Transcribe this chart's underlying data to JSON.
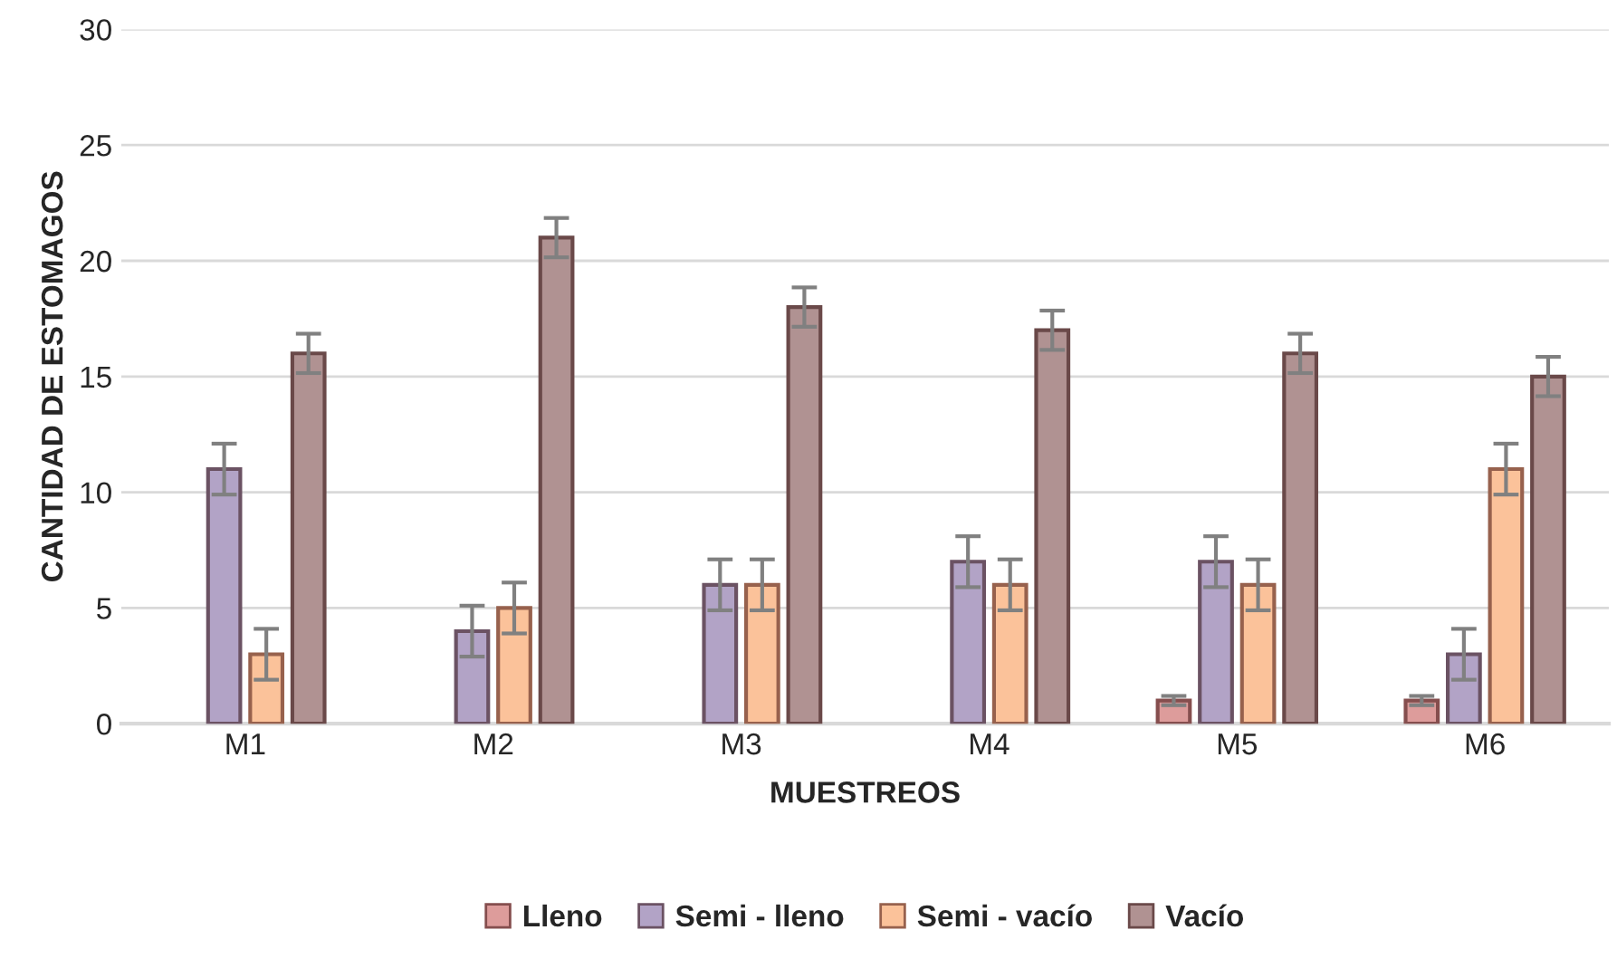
{
  "chart_data": {
    "type": "bar",
    "xlabel": "MUESTREOS",
    "ylabel": "CANTIDAD DE ESTOMAGOS",
    "categories": [
      "M1",
      "M2",
      "M3",
      "M4",
      "M5",
      "M6"
    ],
    "series": [
      {
        "name": "Lleno",
        "color": "#dd9c9b",
        "values": [
          0,
          0,
          0,
          0,
          1,
          1
        ],
        "errors": [
          null,
          null,
          null,
          null,
          0.2,
          0.2
        ]
      },
      {
        "name": "Semi - lleno",
        "color": "#b2a3c6",
        "values": [
          11,
          4,
          6,
          7,
          7,
          3
        ],
        "errors": [
          1.1,
          1.1,
          1.1,
          1.1,
          1.1,
          1.1
        ]
      },
      {
        "name": "Semi - vacío",
        "color": "#fbc29a",
        "values": [
          3,
          5,
          6,
          6,
          6,
          11
        ],
        "errors": [
          1.1,
          1.1,
          1.1,
          1.1,
          1.1,
          1.1
        ]
      },
      {
        "name": "Vacío",
        "color": "#b09292",
        "values": [
          16,
          21,
          18,
          17,
          16,
          15
        ],
        "errors": [
          0.85,
          0.85,
          0.85,
          0.85,
          0.85,
          0.85
        ]
      }
    ],
    "ylim": [
      0,
      30
    ],
    "yticks": [
      0,
      5,
      10,
      15,
      20,
      25,
      30
    ],
    "grid": "y",
    "legend": "bottom"
  }
}
